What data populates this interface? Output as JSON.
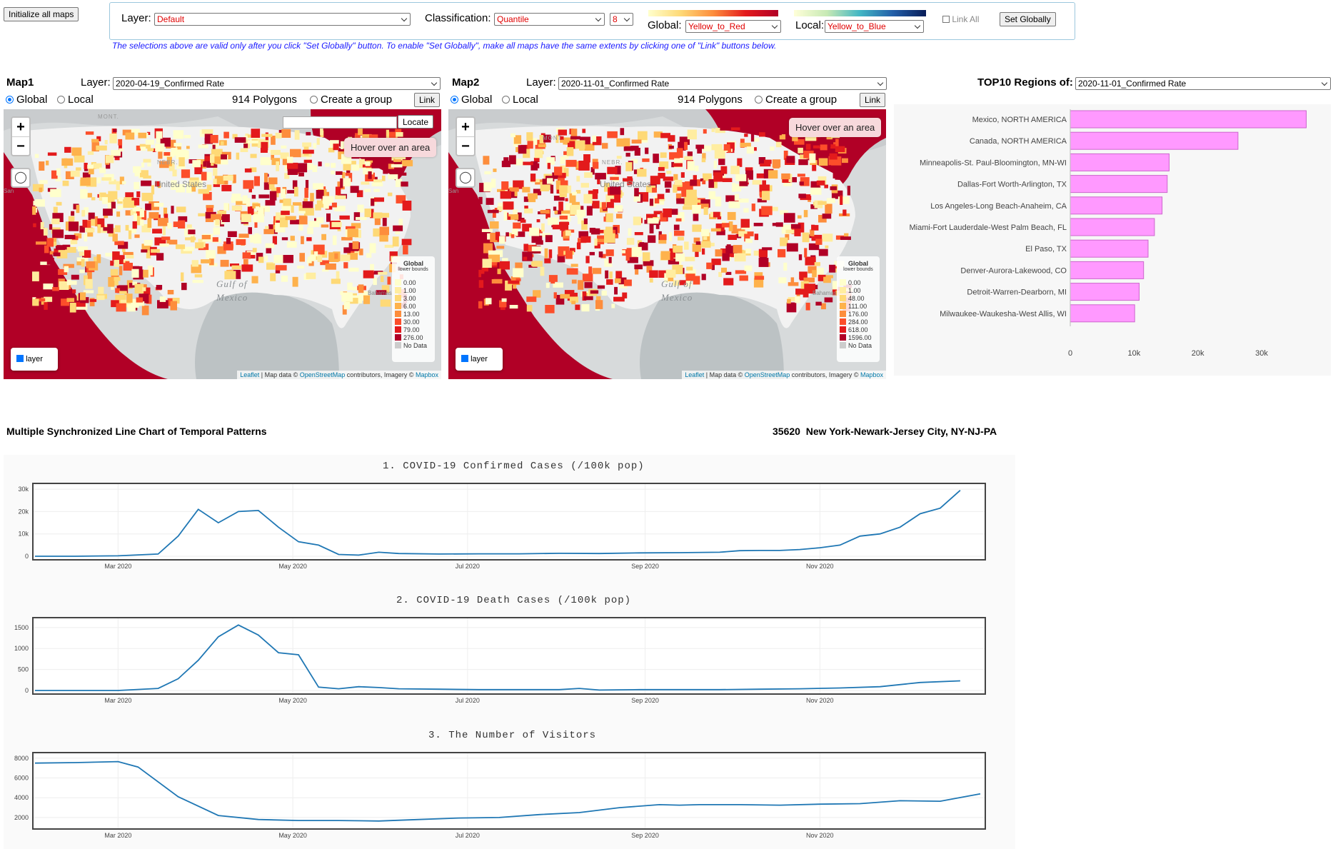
{
  "controls": {
    "init_button": "Initialize all maps",
    "layer_label": "Layer:",
    "layer_value": "Default",
    "classification_label": "Classification:",
    "classification_value": "Quantile",
    "classes_value": "8",
    "global_label": "Global:",
    "global_value": "Yellow_to_Red",
    "local_label": "Local:",
    "local_value": "Yellow_to_Blue",
    "link_all_label": "Link All",
    "set_globally_button": "Set Globally",
    "note": "The selections above are valid only after you click \"Set Globally\" button. To enable \"Set Globally\", make all maps have the same extents by clicking one of \"Link\" buttons below."
  },
  "map1": {
    "title": "Map1",
    "layer_label": "Layer:",
    "layer_value": "2020-04-19_Confirmed Rate",
    "global_label": "Global",
    "local_label": "Local",
    "polygons": "914 Polygons",
    "create_group": "Create a group",
    "link_button": "Link",
    "locate_button": "Locate",
    "hover_text": "Hover over an area",
    "layer_toggle": "layer",
    "legend_title": "Global",
    "legend_sub": "lower bounds",
    "legend": [
      {
        "label": "0.00",
        "color": "#ffffcc"
      },
      {
        "label": "1.00",
        "color": "#ffeda0"
      },
      {
        "label": "3.00",
        "color": "#fed976"
      },
      {
        "label": "6.00",
        "color": "#feb24c"
      },
      {
        "label": "13.00",
        "color": "#fd8d3c"
      },
      {
        "label": "30.00",
        "color": "#fc4e2a"
      },
      {
        "label": "79.00",
        "color": "#e31a1c"
      },
      {
        "label": "276.00",
        "color": "#b10026"
      },
      {
        "label": "No Data",
        "color": "#cccccc"
      }
    ],
    "attribution": {
      "leaflet": "Leaflet",
      "text": " | Map data © ",
      "osm": "OpenStreetMap",
      "text2": " contributors, Imagery © ",
      "mapbox": "Mapbox"
    },
    "map_labels": {
      "country": "United States",
      "gulf1": "Gulf of",
      "gulf2": "Mexico",
      "mont": "MONT.",
      "nebr": "NEBR.",
      "bahamas": "Bahamas",
      "san": "San"
    }
  },
  "map2": {
    "title": "Map2",
    "layer_label": "Layer:",
    "layer_value": "2020-11-01_Confirmed Rate",
    "global_label": "Global",
    "local_label": "Local",
    "polygons": "914 Polygons",
    "create_group": "Create a group",
    "link_button": "Link",
    "hover_text": "Hover over an area",
    "layer_toggle": "layer",
    "legend_title": "Global",
    "legend_sub": "lower bounds",
    "legend": [
      {
        "label": "0.00",
        "color": "#ffffcc"
      },
      {
        "label": "1.00",
        "color": "#ffeda0"
      },
      {
        "label": "48.00",
        "color": "#fed976"
      },
      {
        "label": "111.00",
        "color": "#feb24c"
      },
      {
        "label": "176.00",
        "color": "#fd8d3c"
      },
      {
        "label": "284.00",
        "color": "#fc4e2a"
      },
      {
        "label": "618.00",
        "color": "#e31a1c"
      },
      {
        "label": "1596.00",
        "color": "#b10026"
      },
      {
        "label": "No Data",
        "color": "#cccccc"
      }
    ],
    "attribution": {
      "leaflet": "Leaflet",
      "text": " | Map data © ",
      "osm": "OpenStreetMap",
      "text2": " contributors, Imagery © ",
      "mapbox": "Mapbox"
    },
    "map_labels": {
      "country": "United States",
      "gulf1": "Gulf of",
      "gulf2": "Mexico",
      "mont": "MONT.",
      "nebr": "NEBR.",
      "bahamas": "Bahamas",
      "san": "San"
    }
  },
  "top10": {
    "label": "TOP10 Regions of:",
    "select_value": "2020-11-01_Confirmed Rate"
  },
  "temporal": {
    "heading": "Multiple Synchronized Line Chart of Temporal Patterns",
    "region": "35620  New York-Newark-Jersey City, NY-NJ-PA"
  },
  "colors": {
    "bar": "#ff99ff",
    "bar_stroke": "#cc66cc",
    "line": "#1f77b4",
    "darkred": "#b10026"
  },
  "chart_data": [
    {
      "type": "bar",
      "orientation": "horizontal",
      "categories": [
        "Mexico, NORTH AMERICA",
        "Canada, NORTH AMERICA",
        "Minneapolis-St. Paul-Bloomington, MN-WI",
        "Dallas-Fort Worth-Arlington, TX",
        "Los Angeles-Long Beach-Anaheim, CA",
        "Miami-Fort Lauderdale-West Palm Beach, FL",
        "El Paso, TX",
        "Denver-Aurora-Lakewood, CO",
        "Detroit-Warren-Dearborn, MI",
        "Milwaukee-Waukesha-West Allis, WI"
      ],
      "values": [
        37000,
        26300,
        15500,
        15200,
        14400,
        13200,
        12200,
        11500,
        10800,
        10100
      ],
      "xticks": [
        "0",
        "10k",
        "20k",
        "30k"
      ],
      "xlim": [
        0,
        40000
      ]
    },
    {
      "type": "line",
      "title": "1. COVID-19 Confirmed Cases (/100k pop)",
      "x": [
        "2020-02-01",
        "2020-02-15",
        "2020-03-01",
        "2020-03-15",
        "2020-03-22",
        "2020-03-29",
        "2020-04-05",
        "2020-04-12",
        "2020-04-19",
        "2020-04-26",
        "2020-05-03",
        "2020-05-10",
        "2020-05-17",
        "2020-05-24",
        "2020-05-31",
        "2020-06-07",
        "2020-06-21",
        "2020-07-05",
        "2020-07-19",
        "2020-08-02",
        "2020-08-16",
        "2020-08-30",
        "2020-09-13",
        "2020-09-27",
        "2020-10-04",
        "2020-10-11",
        "2020-10-18",
        "2020-10-25",
        "2020-11-01",
        "2020-11-08",
        "2020-11-15",
        "2020-11-22",
        "2020-11-29",
        "2020-12-06",
        "2020-12-13",
        "2020-12-20"
      ],
      "y": [
        0,
        0,
        200,
        1000,
        9000,
        21000,
        15000,
        20000,
        20500,
        13000,
        6500,
        5000,
        800,
        500,
        1800,
        1200,
        1000,
        1100,
        1100,
        1300,
        1200,
        1500,
        1600,
        1800,
        2500,
        2600,
        2600,
        3000,
        3800,
        5000,
        9000,
        10000,
        13000,
        19000,
        21500,
        29500
      ],
      "yticks": [
        "0",
        "10k",
        "20k",
        "30k"
      ],
      "ylim": [
        0,
        31000
      ],
      "xticks": [
        "Mar 2020",
        "May 2020",
        "Jul 2020",
        "Sep 2020",
        "Nov 2020"
      ]
    },
    {
      "type": "line",
      "title": "2. COVID-19 Death Cases (/100k pop)",
      "x": [
        "2020-02-01",
        "2020-02-15",
        "2020-03-01",
        "2020-03-15",
        "2020-03-22",
        "2020-03-29",
        "2020-04-05",
        "2020-04-12",
        "2020-04-19",
        "2020-04-26",
        "2020-05-03",
        "2020-05-10",
        "2020-05-17",
        "2020-05-24",
        "2020-05-31",
        "2020-06-07",
        "2020-06-21",
        "2020-07-05",
        "2020-07-19",
        "2020-08-02",
        "2020-08-09",
        "2020-08-16",
        "2020-08-30",
        "2020-09-13",
        "2020-09-27",
        "2020-10-11",
        "2020-10-25",
        "2020-11-08",
        "2020-11-22",
        "2020-12-06",
        "2020-12-20"
      ],
      "y": [
        0,
        0,
        0,
        50,
        280,
        720,
        1280,
        1560,
        1320,
        900,
        850,
        80,
        40,
        90,
        70,
        40,
        30,
        20,
        20,
        20,
        50,
        10,
        20,
        20,
        20,
        30,
        40,
        60,
        90,
        190,
        230
      ],
      "yticks": [
        "0",
        "500",
        "1000",
        "1500"
      ],
      "ylim": [
        0,
        1650
      ],
      "xticks": [
        "Mar 2020",
        "May 2020",
        "Jul 2020",
        "Sep 2020",
        "Nov 2020"
      ]
    },
    {
      "type": "line",
      "title": "3. The Number of Visitors",
      "x": [
        "2020-02-01",
        "2020-02-15",
        "2020-03-01",
        "2020-03-08",
        "2020-03-22",
        "2020-04-05",
        "2020-04-19",
        "2020-05-03",
        "2020-05-17",
        "2020-05-31",
        "2020-06-14",
        "2020-06-28",
        "2020-07-12",
        "2020-07-26",
        "2020-08-09",
        "2020-08-23",
        "2020-09-06",
        "2020-09-13",
        "2020-09-20",
        "2020-10-04",
        "2020-10-18",
        "2020-11-01",
        "2020-11-15",
        "2020-11-29",
        "2020-12-13",
        "2020-12-27"
      ],
      "y": [
        7500,
        7550,
        7650,
        7100,
        4100,
        2200,
        1800,
        1700,
        1700,
        1650,
        1800,
        1950,
        2000,
        2300,
        2500,
        3000,
        3300,
        3250,
        3300,
        3300,
        3250,
        3350,
        3400,
        3700,
        3650,
        4400
      ],
      "yticks": [
        "2000",
        "4000",
        "6000",
        "8000"
      ],
      "ylim": [
        1200,
        8200
      ],
      "xticks": [
        "Mar 2020",
        "May 2020",
        "Jul 2020",
        "Sep 2020",
        "Nov 2020"
      ]
    }
  ]
}
